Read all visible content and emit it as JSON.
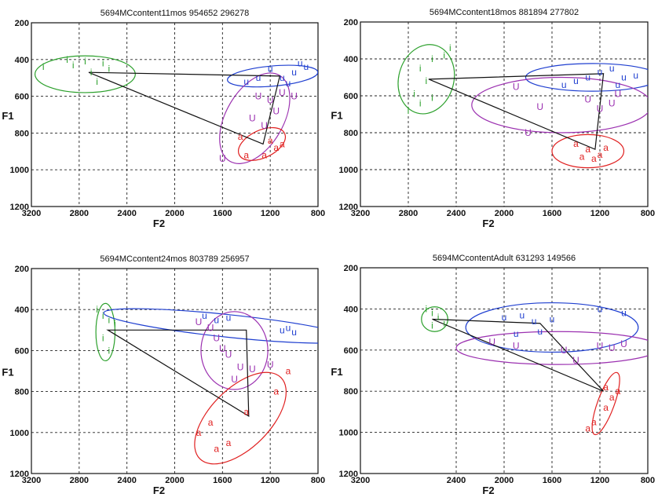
{
  "chart_data": [
    {
      "type": "scatter",
      "title": "5694MCcontent11mos 954652 296278",
      "xlabel": "F2",
      "ylabel": "F1",
      "xlim": [
        3200,
        800
      ],
      "ylim": [
        200,
        1200
      ],
      "xticks": [
        "3200",
        "2800",
        "2400",
        "2000",
        "1600",
        "1200",
        "800"
      ],
      "yticks": [
        "200",
        "400",
        "600",
        "800",
        "1000",
        "1200"
      ],
      "grid": true,
      "series": [
        {
          "name": "i",
          "color": "#2ca02c",
          "points": [
            [
              3100,
              440
            ],
            [
              2900,
              400
            ],
            [
              2850,
              430
            ],
            [
              2750,
              410
            ],
            [
              2700,
              470
            ],
            [
              2650,
              520
            ],
            [
              2600,
              420
            ],
            [
              2550,
              450
            ]
          ],
          "ellipse": {
            "cx": 2750,
            "cy": 480,
            "rx": 420,
            "ry": 100,
            "angle": 0
          }
        },
        {
          "name": "u",
          "color": "#1f3fd0",
          "points": [
            [
              1400,
              520
            ],
            [
              1300,
              500
            ],
            [
              1200,
              450
            ],
            [
              1100,
              500
            ],
            [
              1000,
              470
            ],
            [
              950,
              420
            ],
            [
              900,
              440
            ],
            [
              1050,
              530
            ]
          ],
          "ellipse": {
            "cx": 1180,
            "cy": 490,
            "rx": 380,
            "ry": 55,
            "angle": -5
          }
        },
        {
          "name": "U",
          "color": "#9b30b0",
          "points": [
            [
              1300,
              600
            ],
            [
              1200,
              620
            ],
            [
              1100,
              580
            ],
            [
              1000,
              600
            ],
            [
              1350,
              720
            ],
            [
              1150,
              680
            ],
            [
              1250,
              760
            ],
            [
              1600,
              940
            ]
          ],
          "ellipse": {
            "cx": 1330,
            "cy": 720,
            "rx": 240,
            "ry": 270,
            "angle": 30
          }
        },
        {
          "name": "a",
          "color": "#e02020",
          "points": [
            [
              1450,
              820
            ],
            [
              1200,
              840
            ],
            [
              1100,
              860
            ],
            [
              1400,
              920
            ],
            [
              1250,
              920
            ],
            [
              1150,
              880
            ]
          ],
          "ellipse": {
            "cx": 1270,
            "cy": 860,
            "rx": 210,
            "ry": 75,
            "angle": -25
          }
        }
      ],
      "triangle": [
        [
          2720,
          470
        ],
        [
          1120,
          490
        ],
        [
          1260,
          860
        ]
      ]
    },
    {
      "type": "scatter",
      "title": "5694MCcontent18mos 881894 277802",
      "xlabel": "F2",
      "ylabel": "F1",
      "xlim": [
        3200,
        800
      ],
      "ylim": [
        200,
        1200
      ],
      "xticks": [
        "3200",
        "2800",
        "2400",
        "2000",
        "1600",
        "1200",
        "800"
      ],
      "yticks": [
        "200",
        "400",
        "600",
        "800",
        "1000",
        "1200"
      ],
      "grid": true,
      "series": [
        {
          "name": "i",
          "color": "#2ca02c",
          "points": [
            [
              2450,
              340
            ],
            [
              2500,
              380
            ],
            [
              2600,
              400
            ],
            [
              2700,
              450
            ],
            [
              2650,
              520
            ],
            [
              2750,
              590
            ],
            [
              2700,
              640
            ],
            [
              2800,
              680
            ],
            [
              2600,
              610
            ]
          ],
          "ellipse": {
            "cx": 2650,
            "cy": 510,
            "rx": 230,
            "ry": 190,
            "angle": 15
          }
        },
        {
          "name": "u",
          "color": "#1f3fd0",
          "points": [
            [
              1500,
              540
            ],
            [
              1400,
              520
            ],
            [
              1300,
              500
            ],
            [
              1200,
              470
            ],
            [
              1100,
              450
            ],
            [
              1000,
              500
            ],
            [
              900,
              490
            ],
            [
              1050,
              540
            ]
          ],
          "ellipse": {
            "cx": 1260,
            "cy": 500,
            "rx": 560,
            "ry": 75,
            "angle": 0
          }
        },
        {
          "name": "U",
          "color": "#9b30b0",
          "points": [
            [
              1900,
              550
            ],
            [
              1700,
              660
            ],
            [
              1300,
              620
            ],
            [
              1200,
              670
            ],
            [
              1100,
              640
            ],
            [
              1050,
              590
            ],
            [
              1800,
              800
            ]
          ],
          "ellipse": {
            "cx": 1520,
            "cy": 650,
            "rx": 750,
            "ry": 150,
            "angle": 0
          }
        },
        {
          "name": "a",
          "color": "#e02020",
          "points": [
            [
              1400,
              860
            ],
            [
              1300,
              890
            ],
            [
              1200,
              920
            ],
            [
              1150,
              880
            ],
            [
              1250,
              940
            ],
            [
              1350,
              930
            ]
          ],
          "ellipse": {
            "cx": 1300,
            "cy": 900,
            "rx": 300,
            "ry": 90,
            "angle": 0
          }
        }
      ],
      "triangle": [
        [
          2630,
          510
        ],
        [
          1170,
          480
        ],
        [
          1240,
          890
        ]
      ]
    },
    {
      "type": "scatter",
      "title": "5694MCcontent24mos 803789 256957",
      "xlabel": "F2",
      "ylabel": "F1",
      "xlim": [
        3200,
        800
      ],
      "ylim": [
        200,
        1200
      ],
      "xticks": [
        "3200",
        "2800",
        "2400",
        "2000",
        "1600",
        "1200",
        "800"
      ],
      "yticks": [
        "200",
        "400",
        "600",
        "800",
        "1000",
        "1200"
      ],
      "grid": true,
      "series": [
        {
          "name": "i",
          "color": "#2ca02c",
          "points": [
            [
              2650,
              400
            ],
            [
              2600,
              430
            ],
            [
              2550,
              450
            ],
            [
              2500,
              470
            ],
            [
              2600,
              540
            ],
            [
              2550,
              600
            ]
          ],
          "ellipse": {
            "cx": 2580,
            "cy": 510,
            "rx": 80,
            "ry": 140,
            "angle": 0
          }
        },
        {
          "name": "u",
          "color": "#1f3fd0",
          "points": [
            [
              1750,
              430
            ],
            [
              1650,
              450
            ],
            [
              1550,
              440
            ],
            [
              1100,
              500
            ],
            [
              1050,
              490
            ],
            [
              1000,
              510
            ]
          ],
          "ellipse": {
            "cx": 1550,
            "cy": 480,
            "rx": 1050,
            "ry": 55,
            "angle": 6
          }
        },
        {
          "name": "U",
          "color": "#9b30b0",
          "points": [
            [
              1800,
              460
            ],
            [
              1700,
              490
            ],
            [
              1650,
              540
            ],
            [
              1600,
              590
            ],
            [
              1550,
              620
            ],
            [
              1450,
              680
            ],
            [
              1350,
              690
            ],
            [
              1200,
              670
            ],
            [
              1500,
              740
            ]
          ],
          "ellipse": {
            "cx": 1500,
            "cy": 600,
            "rx": 280,
            "ry": 190,
            "angle": 0
          }
        },
        {
          "name": "a",
          "color": "#e02020",
          "points": [
            [
              1050,
              700
            ],
            [
              1150,
              800
            ],
            [
              1400,
              900
            ],
            [
              1700,
              950
            ],
            [
              1800,
              1000
            ],
            [
              1550,
              1050
            ],
            [
              1650,
              1080
            ]
          ],
          "ellipse": {
            "cx": 1450,
            "cy": 930,
            "rx": 250,
            "ry": 280,
            "angle": 45
          }
        }
      ],
      "triangle": [
        [
          2560,
          500
        ],
        [
          1400,
          500
        ],
        [
          1380,
          920
        ]
      ]
    },
    {
      "type": "scatter",
      "title": "5694MCcontentAdult 631293 149566",
      "xlabel": "F2",
      "ylabel": "F1",
      "xlim": [
        3200,
        800
      ],
      "ylim": [
        200,
        1200
      ],
      "xticks": [
        "3200",
        "2400",
        "2000",
        "1600",
        "1200",
        "800"
      ],
      "yticks": [
        "200",
        "400",
        "600",
        "800",
        "1000",
        "1200"
      ],
      "grid": true,
      "series": [
        {
          "name": "i",
          "color": "#2ca02c",
          "points": [
            [
              2650,
              400
            ],
            [
              2600,
              420
            ],
            [
              2550,
              440
            ],
            [
              2500,
              470
            ],
            [
              2600,
              480
            ]
          ],
          "ellipse": {
            "cx": 2580,
            "cy": 450,
            "rx": 110,
            "ry": 60,
            "angle": 0
          }
        },
        {
          "name": "u",
          "color": "#1f3fd0",
          "points": [
            [
              2000,
              440
            ],
            [
              1850,
              430
            ],
            [
              1750,
              460
            ],
            [
              1600,
              450
            ],
            [
              1200,
              400
            ],
            [
              1000,
              420
            ],
            [
              1900,
              520
            ],
            [
              1700,
              510
            ]
          ],
          "ellipse": {
            "cx": 1600,
            "cy": 490,
            "rx": 720,
            "ry": 120,
            "angle": 0
          }
        },
        {
          "name": "U",
          "color": "#9b30b0",
          "points": [
            [
              2100,
              560
            ],
            [
              1900,
              580
            ],
            [
              1500,
              600
            ],
            [
              1200,
              580
            ],
            [
              1100,
              590
            ],
            [
              1000,
              570
            ],
            [
              1400,
              650
            ]
          ],
          "ellipse": {
            "cx": 1550,
            "cy": 590,
            "rx": 850,
            "ry": 80,
            "angle": 0
          }
        },
        {
          "name": "a",
          "color": "#e02020",
          "points": [
            [
              1150,
              780
            ],
            [
              1050,
              800
            ],
            [
              1100,
              830
            ],
            [
              1150,
              880
            ],
            [
              1250,
              950
            ],
            [
              1300,
              980
            ]
          ],
          "ellipse": {
            "cx": 1150,
            "cy": 860,
            "rx": 70,
            "ry": 160,
            "angle": 20
          }
        }
      ],
      "triangle": [
        [
          2600,
          450
        ],
        [
          1700,
          470
        ],
        [
          1170,
          800
        ]
      ]
    }
  ]
}
